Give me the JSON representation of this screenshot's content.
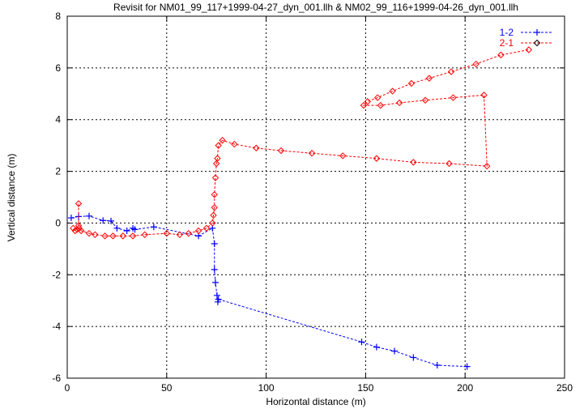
{
  "chart_data": {
    "type": "line",
    "title": "Revisit for NM01_99_117+1999-04-27_dyn_001.llh & NM02_99_116+1999-04-26_dyn_001.llh",
    "xlabel": "Horizontal distance (m)",
    "ylabel": "Vertical distance (m)",
    "xlim": [
      0,
      250
    ],
    "ylim": [
      -6,
      8
    ],
    "xticks": [
      0,
      50,
      100,
      150,
      200,
      250
    ],
    "yticks": [
      -6,
      -4,
      -2,
      0,
      2,
      4,
      6,
      8
    ],
    "grid": true,
    "legend_position": "top-right",
    "series": [
      {
        "name": "1-2",
        "color": "#0000ff",
        "marker": "plus",
        "x": [
          2,
          5.7,
          11,
          18,
          22,
          25,
          30,
          33,
          34,
          43.5,
          66,
          73,
          74,
          74,
          74.5,
          75.3,
          75.7,
          76,
          148,
          155.5,
          164.5,
          174,
          186,
          201
        ],
        "y": [
          0.2,
          0.25,
          0.27,
          0.1,
          0.08,
          -0.2,
          -0.3,
          -0.2,
          -0.25,
          -0.15,
          -0.5,
          -0.2,
          -0.8,
          -1.8,
          -2.3,
          -2.8,
          -3.05,
          -2.95,
          -4.6,
          -4.8,
          -4.95,
          -5.2,
          -5.5,
          -5.55
        ]
      },
      {
        "name": "2-1",
        "color": "#ff0000",
        "marker": "diamond",
        "x": [
          5.7,
          5.7,
          4,
          3,
          5,
          6,
          7,
          11,
          14,
          19,
          23,
          28,
          33,
          39,
          50,
          56.5,
          61,
          66,
          70,
          73,
          73.5,
          74,
          74,
          74.5,
          75,
          75.5,
          76,
          78,
          84,
          95,
          107.5,
          123,
          138.5,
          155.5,
          174,
          192,
          211,
          209.5,
          194,
          180,
          167,
          157.5,
          149,
          151,
          156,
          163.5,
          173,
          182,
          193,
          205.5,
          218,
          232
        ],
        "y": [
          0.75,
          -0.1,
          -0.3,
          -0.2,
          -0.25,
          -0.2,
          -0.3,
          -0.4,
          -0.45,
          -0.5,
          -0.5,
          -0.5,
          -0.5,
          -0.45,
          -0.4,
          -0.45,
          -0.4,
          -0.3,
          -0.2,
          0,
          0.3,
          0.6,
          1.1,
          1.75,
          2.3,
          2.5,
          3,
          3.2,
          3.05,
          2.9,
          2.8,
          2.7,
          2.6,
          2.5,
          2.35,
          2.3,
          2.2,
          4.95,
          4.85,
          4.75,
          4.65,
          4.55,
          4.55,
          4.7,
          4.85,
          5.1,
          5.4,
          5.6,
          5.85,
          6.15,
          6.5,
          6.7
        ]
      }
    ]
  }
}
